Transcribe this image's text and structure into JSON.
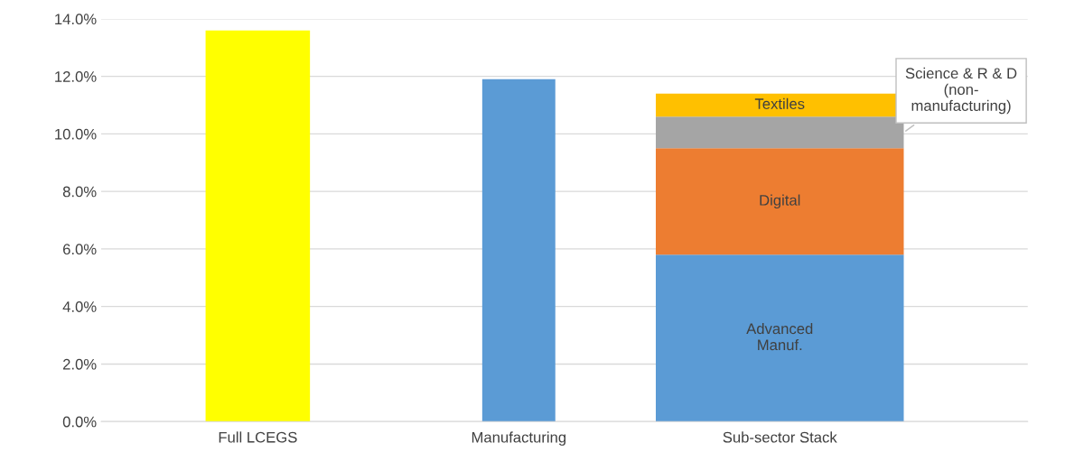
{
  "chart_data": {
    "type": "bar",
    "stacked": true,
    "categories": [
      "Full LCEGS",
      "Manufacturing",
      "Sub-sector Stack"
    ],
    "series": [
      {
        "colors": [
          "#ffff00",
          "#5b9bd5",
          null
        ],
        "values": [
          13.6,
          11.9,
          null
        ]
      },
      {
        "name": "Advanced\nManuf.",
        "color": "#5b9bd5",
        "values": [
          null,
          null,
          5.8
        ]
      },
      {
        "name": "Digital",
        "color": "#ed7d31",
        "values": [
          null,
          null,
          3.7
        ]
      },
      {
        "name": "Science & R & D\n(non-\nmanufacturing)",
        "color": "#a5a5a5",
        "values": [
          null,
          null,
          1.1
        ]
      },
      {
        "name": "Textiles",
        "color": "#ffc000",
        "values": [
          null,
          null,
          0.8
        ]
      }
    ],
    "ylim": [
      0,
      14
    ],
    "yticks": [
      {
        "value": 0,
        "label": "0.0%"
      },
      {
        "value": 2,
        "label": "2.0%"
      },
      {
        "value": 4,
        "label": "4.0%"
      },
      {
        "value": 6,
        "label": "6.0%"
      },
      {
        "value": 8,
        "label": "8.0%"
      },
      {
        "value": 10,
        "label": "10.0%"
      },
      {
        "value": 12,
        "label": "12.0%"
      },
      {
        "value": 14,
        "label": "14.0%"
      }
    ],
    "grid": "y",
    "legend": false
  }
}
